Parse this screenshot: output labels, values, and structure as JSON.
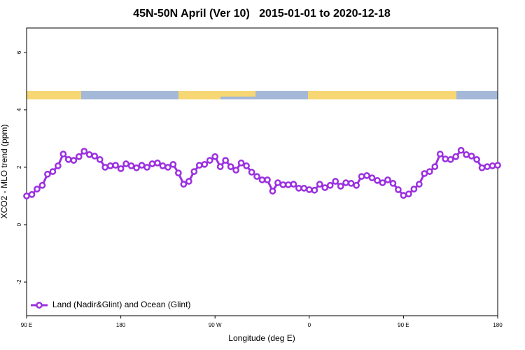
{
  "chart_data": {
    "type": "line",
    "title": "45N-50N April (Ver 10)   2015-01-01 to 2020-12-18",
    "xlabel": "Longitude (deg E)",
    "ylabel": "XCO2 - MLO trend (ppm)",
    "xlim": [
      90,
      540
    ],
    "xticks": [
      {
        "value": 90,
        "label": "90 E"
      },
      180,
      {
        "value": 270,
        "label": "90 W"
      },
      {
        "value": 360,
        "label": "0"
      },
      {
        "value": 450,
        "label": "90 E"
      },
      {
        "value": 540,
        "label": "180"
      }
    ],
    "ylim": [
      -3.17,
      6.85
    ],
    "yticks": [
      -2,
      0,
      2,
      4,
      6
    ],
    "grid": false,
    "legend": "bottom-left",
    "x": [
      90,
      95,
      100,
      105,
      110,
      115,
      120,
      125,
      130,
      135,
      140,
      145,
      150,
      155,
      160,
      165,
      170,
      175,
      180,
      185,
      190,
      195,
      200,
      205,
      210,
      215,
      220,
      225,
      230,
      235,
      240,
      245,
      250,
      255,
      260,
      265,
      270,
      275,
      280,
      285,
      290,
      295,
      300,
      305,
      310,
      315,
      320,
      325,
      330,
      335,
      340,
      345,
      350,
      355,
      360,
      365,
      370,
      375,
      380,
      385,
      390,
      395,
      400,
      405,
      410,
      415,
      420,
      425,
      430,
      435,
      440,
      445,
      450,
      455,
      460,
      465,
      470,
      475,
      480,
      485,
      490,
      495,
      500,
      505,
      510,
      515,
      520,
      525,
      530,
      535,
      540
    ],
    "series": [
      {
        "name": "Land (Nadir&Glint) and Ocean (Glint)",
        "color": "#9b30e0",
        "values": [
          1.0,
          1.05,
          1.24,
          1.37,
          1.76,
          1.85,
          2.05,
          2.46,
          2.27,
          2.24,
          2.37,
          2.56,
          2.44,
          2.39,
          2.27,
          2.0,
          2.05,
          2.07,
          1.95,
          2.12,
          2.05,
          1.98,
          2.07,
          2.0,
          2.12,
          2.15,
          2.05,
          2.0,
          2.1,
          1.8,
          1.41,
          1.51,
          1.85,
          2.07,
          2.1,
          2.24,
          2.37,
          2.02,
          2.24,
          2.02,
          1.9,
          2.15,
          2.05,
          1.83,
          1.68,
          1.56,
          1.56,
          1.17,
          1.46,
          1.39,
          1.39,
          1.41,
          1.27,
          1.27,
          1.22,
          1.2,
          1.41,
          1.29,
          1.37,
          1.51,
          1.34,
          1.46,
          1.44,
          1.37,
          1.68,
          1.71,
          1.63,
          1.54,
          1.46,
          1.56,
          1.44,
          1.22,
          1.02,
          1.07,
          1.24,
          1.41,
          1.78,
          1.85,
          2.02,
          2.46,
          2.29,
          2.27,
          2.37,
          2.59,
          2.44,
          2.39,
          2.27,
          1.98,
          2.02,
          2.05,
          2.07
        ]
      }
    ]
  }
}
